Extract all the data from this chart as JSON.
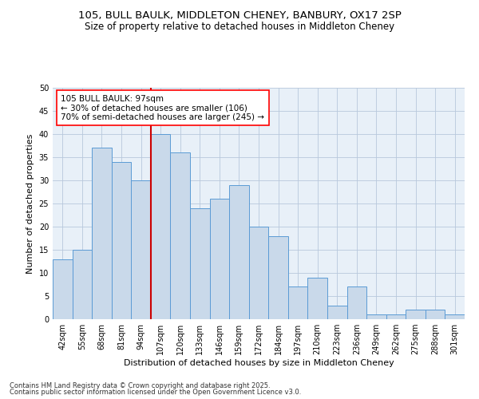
{
  "title1": "105, BULL BAULK, MIDDLETON CHENEY, BANBURY, OX17 2SP",
  "title2": "Size of property relative to detached houses in Middleton Cheney",
  "xlabel": "Distribution of detached houses by size in Middleton Cheney",
  "ylabel": "Number of detached properties",
  "categories": [
    "42sqm",
    "55sqm",
    "68sqm",
    "81sqm",
    "94sqm",
    "107sqm",
    "120sqm",
    "133sqm",
    "146sqm",
    "159sqm",
    "172sqm",
    "184sqm",
    "197sqm",
    "210sqm",
    "223sqm",
    "236sqm",
    "249sqm",
    "262sqm",
    "275sqm",
    "288sqm",
    "301sqm"
  ],
  "values": [
    13,
    15,
    37,
    34,
    30,
    40,
    36,
    24,
    26,
    29,
    20,
    18,
    7,
    9,
    3,
    7,
    1,
    1,
    2,
    2,
    1
  ],
  "bar_color": "#c9d9ea",
  "bar_edge_color": "#5b9bd5",
  "vline_color": "#cc0000",
  "vline_x_index": 4,
  "annotation_line1": "105 BULL BAULK: 97sqm",
  "annotation_line2": "← 30% of detached houses are smaller (106)",
  "annotation_line3": "70% of semi-detached houses are larger (245) →",
  "ylim": [
    0,
    50
  ],
  "yticks": [
    0,
    5,
    10,
    15,
    20,
    25,
    30,
    35,
    40,
    45,
    50
  ],
  "grid_color": "#b8c8dc",
  "bg_color": "#e8f0f8",
  "footer_line1": "Contains HM Land Registry data © Crown copyright and database right 2025.",
  "footer_line2": "Contains public sector information licensed under the Open Government Licence v3.0.",
  "title1_fontsize": 9.5,
  "title2_fontsize": 8.5,
  "xlabel_fontsize": 8,
  "ylabel_fontsize": 8,
  "tick_fontsize": 7,
  "annotation_fontsize": 7.5,
  "footer_fontsize": 6
}
